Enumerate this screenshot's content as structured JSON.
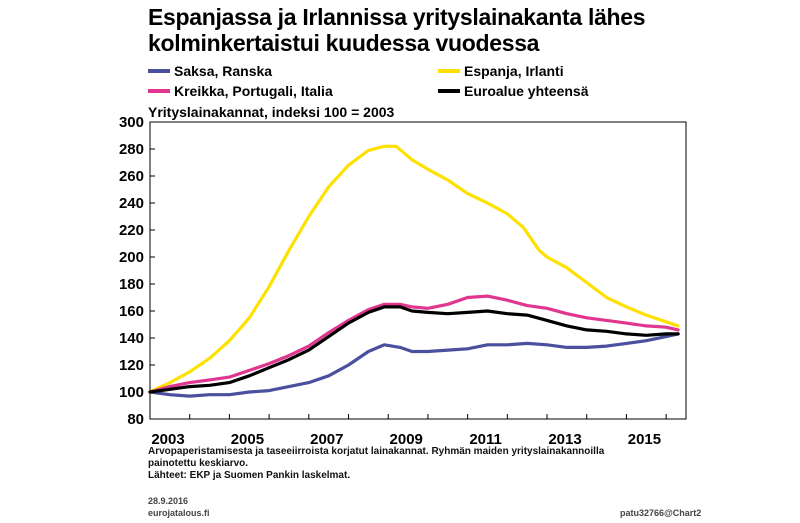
{
  "title_line1": "Espanjassa ja Irlannissa yrityslainakanta lähes",
  "title_line2": "kolminkertaistui kuudessa vuodessa",
  "subtitle": "Yrityslainakannat, indeksi 100 = 2003",
  "footer": {
    "note1": "Arvopaperistamisesta ja taseeiirroista korjatut lainakannat. Ryhmän maiden yrityslainakannoilla",
    "note2": "painotettu keskiarvo.",
    "sources": "Lähteet: EKP ja Suomen Pankin laskelmat.",
    "date": "28.9.2016",
    "site": "eurojatalous.fi",
    "code": "patu32766@Chart2"
  },
  "colors": {
    "saksa": "#4a4f9e",
    "espanja": "#ffe100",
    "kreikka": "#e0368f",
    "euroalue": "#000000"
  },
  "chart_data": {
    "type": "line",
    "title": "Espanjassa ja Irlannissa yrityslainakanta lähes kolminkertaistui kuudessa vuodessa",
    "ylabel": "Yrityslainakannat, indeksi 100 = 2003",
    "xlim": [
      2003,
      2016.5
    ],
    "ylim": [
      80,
      300
    ],
    "x_ticks": [
      "2003",
      "2005",
      "2007",
      "2009",
      "2011",
      "2013",
      "2015"
    ],
    "y_ticks": [
      "80",
      "100",
      "120",
      "140",
      "160",
      "180",
      "200",
      "220",
      "240",
      "260",
      "280",
      "300"
    ],
    "grid": false,
    "legend_position": "top",
    "series": [
      {
        "name": "Saksa, Ranska",
        "color_key": "saksa",
        "points": [
          [
            2003.0,
            100
          ],
          [
            2003.5,
            98
          ],
          [
            2004.0,
            97
          ],
          [
            2004.5,
            98
          ],
          [
            2005.0,
            98
          ],
          [
            2005.5,
            100
          ],
          [
            2006.0,
            101
          ],
          [
            2006.5,
            104
          ],
          [
            2007.0,
            107
          ],
          [
            2007.5,
            112
          ],
          [
            2008.0,
            120
          ],
          [
            2008.5,
            130
          ],
          [
            2008.9,
            135
          ],
          [
            2009.3,
            133
          ],
          [
            2009.6,
            130
          ],
          [
            2010.0,
            130
          ],
          [
            2010.5,
            131
          ],
          [
            2011.0,
            132
          ],
          [
            2011.5,
            135
          ],
          [
            2012.0,
            135
          ],
          [
            2012.5,
            136
          ],
          [
            2013.0,
            135
          ],
          [
            2013.5,
            133
          ],
          [
            2014.0,
            133
          ],
          [
            2014.5,
            134
          ],
          [
            2015.0,
            136
          ],
          [
            2015.5,
            138
          ],
          [
            2016.0,
            141
          ],
          [
            2016.3,
            143
          ]
        ]
      },
      {
        "name": "Espanja, Irlanti",
        "color_key": "espanja",
        "points": [
          [
            2003.0,
            100
          ],
          [
            2003.5,
            107
          ],
          [
            2004.0,
            115
          ],
          [
            2004.5,
            125
          ],
          [
            2005.0,
            138
          ],
          [
            2005.5,
            155
          ],
          [
            2006.0,
            178
          ],
          [
            2006.5,
            205
          ],
          [
            2007.0,
            230
          ],
          [
            2007.5,
            252
          ],
          [
            2008.0,
            268
          ],
          [
            2008.5,
            279
          ],
          [
            2008.9,
            282
          ],
          [
            2009.2,
            282
          ],
          [
            2009.6,
            272
          ],
          [
            2010.0,
            265
          ],
          [
            2010.5,
            257
          ],
          [
            2011.0,
            247
          ],
          [
            2011.5,
            240
          ],
          [
            2012.0,
            232
          ],
          [
            2012.4,
            222
          ],
          [
            2012.8,
            205
          ],
          [
            2013.0,
            200
          ],
          [
            2013.5,
            192
          ],
          [
            2014.0,
            181
          ],
          [
            2014.5,
            170
          ],
          [
            2015.0,
            163
          ],
          [
            2015.5,
            157
          ],
          [
            2016.0,
            152
          ],
          [
            2016.3,
            149
          ]
        ]
      },
      {
        "name": "Kreikka, Portugali, Italia",
        "color_key": "kreikka",
        "points": [
          [
            2003.0,
            100
          ],
          [
            2003.5,
            104
          ],
          [
            2004.0,
            107
          ],
          [
            2004.5,
            109
          ],
          [
            2005.0,
            111
          ],
          [
            2005.5,
            116
          ],
          [
            2006.0,
            121
          ],
          [
            2006.5,
            127
          ],
          [
            2007.0,
            134
          ],
          [
            2007.5,
            144
          ],
          [
            2008.0,
            153
          ],
          [
            2008.5,
            161
          ],
          [
            2008.9,
            165
          ],
          [
            2009.3,
            165
          ],
          [
            2009.6,
            163
          ],
          [
            2010.0,
            162
          ],
          [
            2010.5,
            165
          ],
          [
            2011.0,
            170
          ],
          [
            2011.5,
            171
          ],
          [
            2012.0,
            168
          ],
          [
            2012.5,
            164
          ],
          [
            2013.0,
            162
          ],
          [
            2013.5,
            158
          ],
          [
            2014.0,
            155
          ],
          [
            2014.5,
            153
          ],
          [
            2015.0,
            151
          ],
          [
            2015.5,
            149
          ],
          [
            2016.0,
            148
          ],
          [
            2016.3,
            146
          ]
        ]
      },
      {
        "name": "Euroalue yhteensä",
        "color_key": "euroalue",
        "points": [
          [
            2003.0,
            100
          ],
          [
            2003.5,
            102
          ],
          [
            2004.0,
            104
          ],
          [
            2004.5,
            105
          ],
          [
            2005.0,
            107
          ],
          [
            2005.5,
            112
          ],
          [
            2006.0,
            118
          ],
          [
            2006.5,
            124
          ],
          [
            2007.0,
            131
          ],
          [
            2007.5,
            141
          ],
          [
            2008.0,
            151
          ],
          [
            2008.5,
            159
          ],
          [
            2008.9,
            163
          ],
          [
            2009.3,
            163
          ],
          [
            2009.6,
            160
          ],
          [
            2010.0,
            159
          ],
          [
            2010.5,
            158
          ],
          [
            2011.0,
            159
          ],
          [
            2011.5,
            160
          ],
          [
            2012.0,
            158
          ],
          [
            2012.5,
            157
          ],
          [
            2013.0,
            153
          ],
          [
            2013.5,
            149
          ],
          [
            2014.0,
            146
          ],
          [
            2014.5,
            145
          ],
          [
            2015.0,
            143
          ],
          [
            2015.5,
            142
          ],
          [
            2016.0,
            143
          ],
          [
            2016.3,
            143
          ]
        ]
      }
    ]
  }
}
